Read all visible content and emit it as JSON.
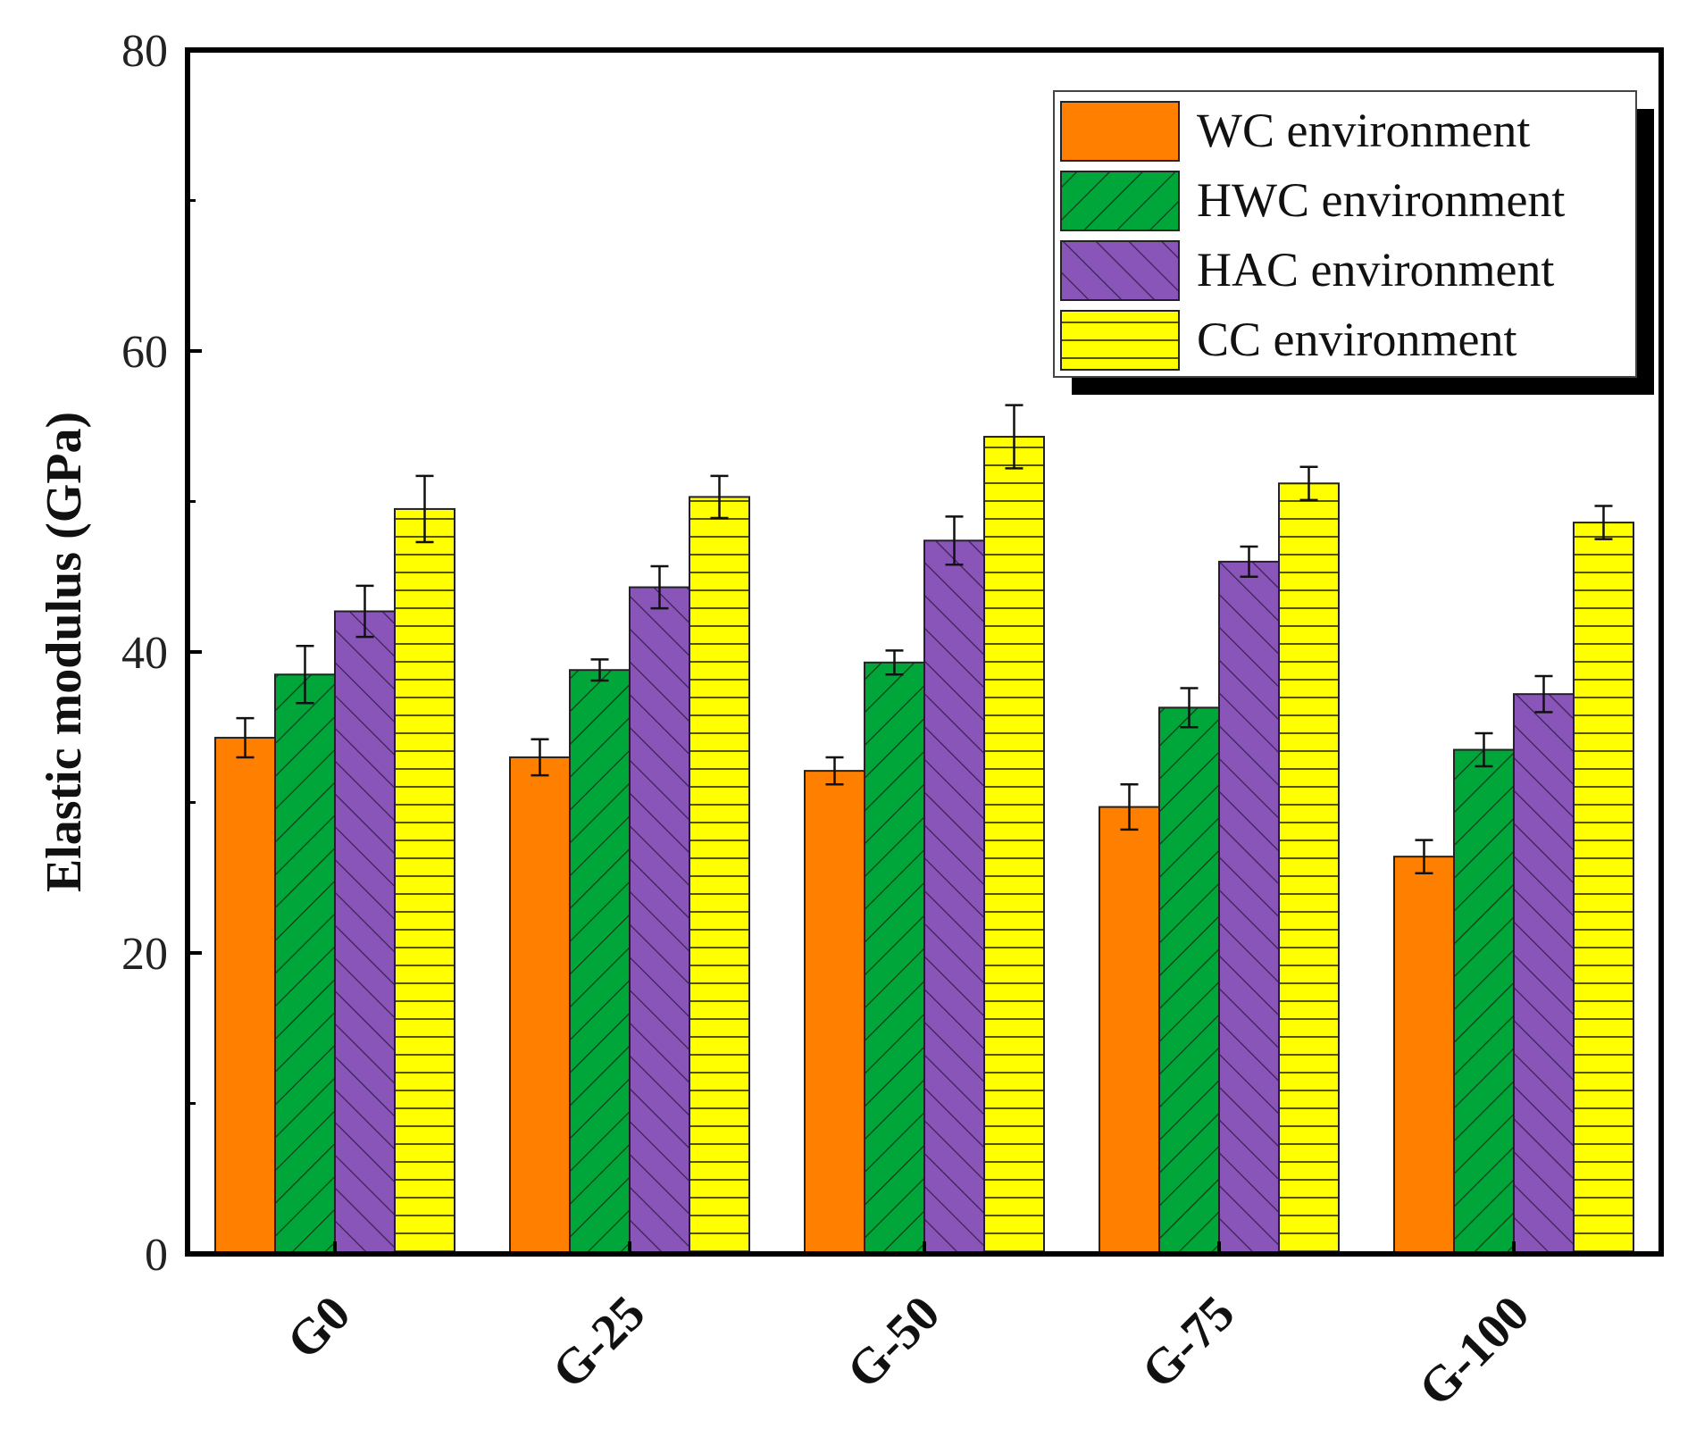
{
  "chart_data": {
    "type": "bar",
    "ylabel": "Elastic modulus (GPa)",
    "xlabel": "",
    "ylim": [
      0,
      80
    ],
    "yticks": [
      0,
      20,
      40,
      60,
      80
    ],
    "categories": [
      "G0",
      "G-25",
      "G-50",
      "G-75",
      "G-100"
    ],
    "series": [
      {
        "name": "WC environment",
        "values": [
          34.3,
          33.0,
          32.1,
          29.7,
          26.4
        ],
        "errors": [
          1.3,
          1.2,
          0.9,
          1.5,
          1.1
        ],
        "color": "#FF7F00",
        "pattern": "solid"
      },
      {
        "name": "HWC environment",
        "values": [
          38.5,
          38.8,
          39.3,
          36.3,
          33.5
        ],
        "errors": [
          1.9,
          0.7,
          0.8,
          1.3,
          1.1
        ],
        "color": "#00A63A",
        "pattern": "diag-right"
      },
      {
        "name": "HAC environment",
        "values": [
          42.7,
          44.3,
          47.4,
          46.0,
          37.2
        ],
        "errors": [
          1.7,
          1.4,
          1.6,
          1.0,
          1.2
        ],
        "color": "#8A55B8",
        "pattern": "diag-left"
      },
      {
        "name": "CC environment",
        "values": [
          49.5,
          50.3,
          54.3,
          51.2,
          48.6
        ],
        "errors": [
          2.2,
          1.4,
          2.1,
          1.1,
          1.1
        ],
        "color": "#FFFF00",
        "pattern": "horizontal"
      }
    ],
    "legend_position": "top-right",
    "grid": false
  }
}
